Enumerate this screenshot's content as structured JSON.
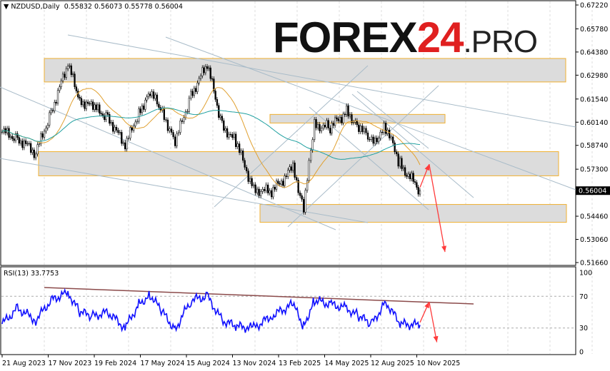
{
  "header": {
    "symbol": "NZDUSD,Daily",
    "ohlc": "0.55832 0.56073 0.55778 0.56004"
  },
  "logo": {
    "part1": "FOREX",
    "part2": "24",
    "part3": ".PRO",
    "accent": "#e02020"
  },
  "rsi_header": "RSI(13) 33.7753",
  "current_price_label": "0.56004",
  "chart_data": [
    {
      "type": "candlestick",
      "title": "NZDUSD,Daily",
      "yticks": [
        "0.67220",
        "0.65780",
        "0.64380",
        "0.62980",
        "0.61540",
        "0.60140",
        "0.58740",
        "0.57300",
        "0.56004",
        "0.54460",
        "0.53060",
        "0.51660"
      ],
      "ylim": [
        0.5166,
        0.6722
      ],
      "xticks": [
        "21 Aug 2023",
        "17 Nov 2023",
        "19 Feb 2024",
        "17 May 2024",
        "15 Aug 2024",
        "13 Nov 2024",
        "13 Feb 2025",
        "14 May 2025",
        "12 Aug 2025",
        "10 Nov 2025"
      ],
      "series": [
        {
          "date": "2023-08-21",
          "close": 0.5955
        },
        {
          "date": "2023-09-20",
          "close": 0.592
        },
        {
          "date": "2023-10-26",
          "close": 0.5825
        },
        {
          "date": "2023-11-25",
          "close": 0.608
        },
        {
          "date": "2023-12-28",
          "close": 0.636
        },
        {
          "date": "2024-01-20",
          "close": 0.615
        },
        {
          "date": "2024-02-15",
          "close": 0.61
        },
        {
          "date": "2024-03-15",
          "close": 0.605
        },
        {
          "date": "2024-04-18",
          "close": 0.5865
        },
        {
          "date": "2024-05-15",
          "close": 0.608
        },
        {
          "date": "2024-06-06",
          "close": 0.619
        },
        {
          "date": "2024-06-30",
          "close": 0.608
        },
        {
          "date": "2024-07-25",
          "close": 0.589
        },
        {
          "date": "2024-08-25",
          "close": 0.618
        },
        {
          "date": "2024-09-26",
          "close": 0.636
        },
        {
          "date": "2024-10-25",
          "close": 0.6
        },
        {
          "date": "2024-11-21",
          "close": 0.589
        },
        {
          "date": "2024-12-26",
          "close": 0.561
        },
        {
          "date": "2025-01-30",
          "close": 0.559
        },
        {
          "date": "2025-03-13",
          "close": 0.574
        },
        {
          "date": "2025-04-03",
          "close": 0.55
        },
        {
          "date": "2025-04-24",
          "close": 0.6
        },
        {
          "date": "2025-05-25",
          "close": 0.598
        },
        {
          "date": "2025-06-26",
          "close": 0.608
        },
        {
          "date": "2025-07-20",
          "close": 0.599
        },
        {
          "date": "2025-08-14",
          "close": 0.589
        },
        {
          "date": "2025-09-11",
          "close": 0.598
        },
        {
          "date": "2025-10-09",
          "close": 0.576
        },
        {
          "date": "2025-11-17",
          "close": 0.56
        }
      ],
      "zones": [
        [
          0.6257,
          0.6399
        ],
        [
          0.6009,
          0.6061
        ],
        [
          0.569,
          0.5836
        ],
        [
          0.5409,
          0.5517
        ]
      ],
      "forecast_arrows": [
        {
          "from": [
            "2025-11-17",
            0.562
          ],
          "to": [
            "2025-12-05",
            0.576
          ]
        },
        {
          "from": [
            "2025-12-05",
            0.576
          ],
          "to": [
            "2026-01-05",
            0.523
          ]
        }
      ],
      "colors": {
        "candle": "#000000",
        "ma_fast": "#e0a030",
        "ma_slow": "#20a0a0",
        "zone": "#dcdcdc",
        "zone_border": "#f0b030",
        "arrow": "#ff3b3b",
        "trendline": "#a9bcc9"
      }
    },
    {
      "type": "line",
      "title": "RSI(13) 33.7753",
      "ylim": [
        0,
        100
      ],
      "yticks": [
        "100",
        "70",
        "30",
        "0"
      ],
      "series": [
        {
          "date": "2023-08-21",
          "value": 35
        },
        {
          "date": "2023-09-20",
          "value": 55
        },
        {
          "date": "2023-10-26",
          "value": 40
        },
        {
          "date": "2023-11-25",
          "value": 65
        },
        {
          "date": "2023-12-28",
          "value": 75
        },
        {
          "date": "2024-01-20",
          "value": 50
        },
        {
          "date": "2024-02-15",
          "value": 45
        },
        {
          "date": "2024-03-15",
          "value": 50
        },
        {
          "date": "2024-04-18",
          "value": 30
        },
        {
          "date": "2024-05-15",
          "value": 60
        },
        {
          "date": "2024-06-06",
          "value": 72
        },
        {
          "date": "2024-06-30",
          "value": 50
        },
        {
          "date": "2024-07-25",
          "value": 28
        },
        {
          "date": "2024-08-25",
          "value": 65
        },
        {
          "date": "2024-09-26",
          "value": 70
        },
        {
          "date": "2024-10-25",
          "value": 40
        },
        {
          "date": "2024-11-21",
          "value": 32
        },
        {
          "date": "2024-12-26",
          "value": 30
        },
        {
          "date": "2025-01-30",
          "value": 45
        },
        {
          "date": "2025-03-13",
          "value": 60
        },
        {
          "date": "2025-04-03",
          "value": 32
        },
        {
          "date": "2025-04-24",
          "value": 65
        },
        {
          "date": "2025-05-25",
          "value": 60
        },
        {
          "date": "2025-06-26",
          "value": 55
        },
        {
          "date": "2025-07-20",
          "value": 45
        },
        {
          "date": "2025-08-14",
          "value": 35
        },
        {
          "date": "2025-09-11",
          "value": 63
        },
        {
          "date": "2025-10-09",
          "value": 35
        },
        {
          "date": "2025-11-17",
          "value": 33.8
        }
      ],
      "forecast_arrows": [
        {
          "from": [
            "2025-11-17",
            37
          ],
          "to": [
            "2025-12-05",
            63
          ]
        },
        {
          "from": [
            "2025-12-05",
            63
          ],
          "to": [
            "2025-12-20",
            12
          ]
        }
      ],
      "colors": {
        "line": "#1010ff",
        "trendline": "#8b4a4a",
        "levels": "#aaaaaa"
      }
    }
  ]
}
